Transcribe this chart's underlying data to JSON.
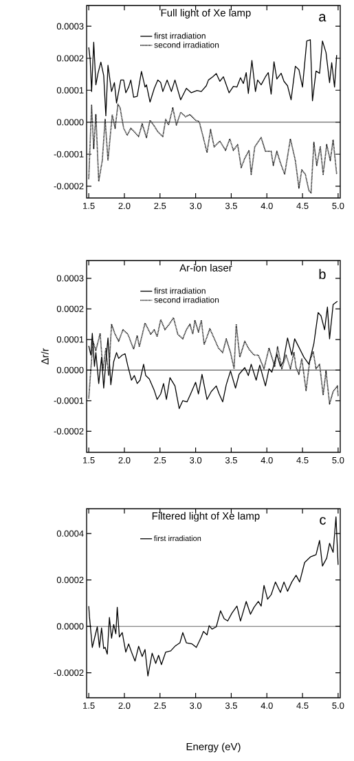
{
  "chart_data": [
    {
      "type": "line",
      "title": "Full light of Xe lamp",
      "legend": "top",
      "annotations": [
        "a"
      ],
      "xlim": [
        1.47,
        5.03
      ],
      "ylim": [
        -0.000237,
        0.000365
      ],
      "xticks": [
        {
          "value": 1.5,
          "label": "1.5"
        },
        {
          "value": 2.0,
          "label": "2.0"
        },
        {
          "value": 2.5,
          "label": "2.5"
        },
        {
          "value": 3.0,
          "label": "3.0"
        },
        {
          "value": 3.5,
          "label": "3.5"
        },
        {
          "value": 4.0,
          "label": "4.0"
        },
        {
          "value": 4.5,
          "label": "4.5"
        },
        {
          "value": 5.0,
          "label": "5.0"
        }
      ],
      "yticks": [
        {
          "value": -0.0002,
          "label": "-0.0002"
        },
        {
          "value": -0.0001,
          "label": "-0.0001"
        },
        {
          "value": 0,
          "label": "0.0000"
        },
        {
          "value": 0.0001,
          "label": "0.0001"
        },
        {
          "value": 0.0002,
          "label": "0.0002"
        },
        {
          "value": 0.0003,
          "label": "0.0003"
        }
      ],
      "ref_lines": [
        {
          "axis": "y",
          "value": 0
        }
      ],
      "series": [
        {
          "name": "first irradiation",
          "color": "#000000",
          "line_style": "solid",
          "x": [
            1.5,
            1.52,
            1.54,
            1.57,
            1.6,
            1.63,
            1.67,
            1.71,
            1.74,
            1.77,
            1.82,
            1.86,
            1.89,
            1.95,
            1.99,
            2.02,
            2.06,
            2.09,
            2.13,
            2.18,
            2.24,
            2.29,
            2.31,
            2.36,
            2.42,
            2.47,
            2.51,
            2.54,
            2.6,
            2.66,
            2.71,
            2.79,
            2.87,
            2.94,
            3.02,
            3.08,
            3.15,
            3.18,
            3.24,
            3.29,
            3.34,
            3.39,
            3.47,
            3.53,
            3.58,
            3.63,
            3.67,
            3.71,
            3.74,
            3.79,
            3.84,
            3.87,
            3.92,
            3.98,
            4.02,
            4.06,
            4.1,
            4.14,
            4.2,
            4.24,
            4.29,
            4.34,
            4.4,
            4.45,
            4.5,
            4.56,
            4.61,
            4.64,
            4.69,
            4.74,
            4.78,
            4.83,
            4.88,
            4.91,
            4.95,
            4.98
          ],
          "values": [
            0.000234,
            0.000196,
            9.6e-05,
            0.00025,
            0.000117,
            0.000153,
            0.000188,
            0.000146,
            2e-05,
            0.000178,
            9.6e-05,
            0.000124,
            6e-05,
            0.000132,
            0.000132,
            9.2e-05,
            0.00011,
            0.000132,
            7.8e-05,
            8.1e-05,
            0.000159,
            0.00011,
            0.000117,
            6.3e-05,
            0.000106,
            0.000132,
            0.000124,
            9.6e-05,
            0.000132,
            9.6e-05,
            0.000132,
            7e-05,
            0.000106,
            9.2e-05,
            9.9e-05,
            9.6e-05,
            0.000114,
            0.000132,
            0.000142,
            0.000152,
            0.000128,
            0.000142,
            9.2e-05,
            0.000112,
            0.00011,
            0.000139,
            0.000121,
            0.000155,
            9e-05,
            0.000193,
            9.6e-05,
            0.000132,
            0.000117,
            0.000142,
            0.000155,
            8.8e-05,
            0.000189,
            0.000135,
            0.000153,
            0.000128,
            0.000114,
            7e-05,
            0.000175,
            0.000164,
            0.00011,
            0.000254,
            0.000258,
            6.7e-05,
            0.00016,
            0.000153,
            0.000254,
            0.000218,
            0.000124,
            0.000186,
            0.00011,
            0.00021
          ]
        },
        {
          "name": "second irradiation",
          "color": "#000000",
          "line_style": "dotted",
          "x": [
            1.5,
            1.54,
            1.57,
            1.6,
            1.64,
            1.69,
            1.73,
            1.77,
            1.83,
            1.87,
            1.91,
            1.94,
            1.99,
            2.04,
            2.09,
            2.14,
            2.2,
            2.25,
            2.31,
            2.36,
            2.42,
            2.47,
            2.54,
            2.58,
            2.62,
            2.68,
            2.73,
            2.79,
            2.86,
            2.92,
            3.0,
            3.05,
            3.1,
            3.16,
            3.21,
            3.26,
            3.34,
            3.42,
            3.48,
            3.53,
            3.59,
            3.64,
            3.69,
            3.75,
            3.78,
            3.83,
            3.92,
            3.98,
            4.06,
            4.09,
            4.14,
            4.19,
            4.25,
            4.33,
            4.4,
            4.45,
            4.49,
            4.54,
            4.59,
            4.62,
            4.66,
            4.7,
            4.75,
            4.79,
            4.84,
            4.89,
            4.93,
            4.98
          ],
          "values": [
            -0.000178,
            5.3e-05,
            -8.4e-05,
            2.4e-05,
            -0.000185,
            -0.00012,
            9e-06,
            -0.00012,
            2.4e-05,
            -1.9e-05,
            5.6e-05,
            4.5e-05,
            -1.9e-05,
            -4.1e-05,
            -1.9e-05,
            -3e-05,
            -4.5e-05,
            -5e-06,
            -4.8e-05,
            6e-06,
            -1.2e-05,
            -3e-05,
            -4.5e-05,
            9e-06,
            -9e-06,
            4.5e-05,
            -9e-06,
            3.1e-05,
            1.7e-05,
            2.4e-05,
            6e-06,
            2e-06,
            -4.1e-05,
            -9.5e-05,
            -2.3e-05,
            -7.7e-05,
            -5.9e-05,
            -8.8e-05,
            -5.2e-05,
            -8.8e-05,
            -7e-05,
            -0.000142,
            -0.000113,
            -8.8e-05,
            -0.000163,
            -7.7e-05,
            -4.8e-05,
            -9.1e-05,
            -9.1e-05,
            -0.000135,
            -9.1e-05,
            -0.000127,
            -0.000163,
            -5.2e-05,
            -0.00012,
            -0.000206,
            -0.000149,
            -0.000163,
            -0.000214,
            -0.000221,
            -6.3e-05,
            -0.000135,
            -7.7e-05,
            -0.000163,
            -7e-05,
            -0.00012,
            -5.5e-05,
            -0.000163
          ]
        }
      ]
    },
    {
      "type": "line",
      "title": "Ar-ion laser",
      "ylabel": "Δr/r",
      "legend": "top",
      "annotations": [
        "b"
      ],
      "xlim": [
        1.47,
        5.03
      ],
      "ylim": [
        -0.000269,
        0.000358
      ],
      "xticks": [
        {
          "value": 1.5,
          "label": "1.5"
        },
        {
          "value": 2.0,
          "label": "2.0"
        },
        {
          "value": 2.5,
          "label": "2.5"
        },
        {
          "value": 3.0,
          "label": "3.0"
        },
        {
          "value": 3.5,
          "label": "3.5"
        },
        {
          "value": 4.0,
          "label": "4.0"
        },
        {
          "value": 4.5,
          "label": "4.5"
        },
        {
          "value": 5.0,
          "label": "5.0"
        }
      ],
      "yticks": [
        {
          "value": -0.0002,
          "label": "-0.0002"
        },
        {
          "value": -0.0001,
          "label": "-0.0001"
        },
        {
          "value": 0,
          "label": "0.0000"
        },
        {
          "value": 0.0001,
          "label": "0.0001"
        },
        {
          "value": 0.0002,
          "label": "0.0002"
        },
        {
          "value": 0.0003,
          "label": "0.0003"
        }
      ],
      "ref_lines": [
        {
          "axis": "y",
          "value": 0
        }
      ],
      "series": [
        {
          "name": "first irradiation",
          "color": "#000000",
          "line_style": "solid",
          "x": [
            1.5,
            1.53,
            1.55,
            1.58,
            1.6,
            1.64,
            1.68,
            1.71,
            1.74,
            1.77,
            1.81,
            1.85,
            1.89,
            1.92,
            1.97,
            2.01,
            2.05,
            2.1,
            2.14,
            2.18,
            2.22,
            2.27,
            2.3,
            2.35,
            2.42,
            2.46,
            2.51,
            2.55,
            2.59,
            2.64,
            2.71,
            2.77,
            2.82,
            2.88,
            2.93,
            3.0,
            3.04,
            3.09,
            3.16,
            3.22,
            3.29,
            3.33,
            3.38,
            3.43,
            3.49,
            3.56,
            3.61,
            3.69,
            3.74,
            3.78,
            3.85,
            3.9,
            3.98,
            4.03,
            4.07,
            4.14,
            4.19,
            4.23,
            4.29,
            4.35,
            4.39,
            4.44,
            4.52,
            4.59,
            4.66,
            4.72,
            4.76,
            4.81,
            4.85,
            4.88,
            4.93,
            4.99
          ],
          "values": [
            7.9e-05,
            4.9e-05,
            0.00012,
            1.2e-05,
            5.7e-05,
            -4.4e-05,
            4.2e-05,
            -5.9e-05,
            2.7e-05,
            0.000105,
            -4.8e-05,
            2.7e-05,
            5.7e-05,
            3.8e-05,
            4.9e-05,
            5.3e-05,
            1.2e-05,
            -3.3e-05,
            -1.8e-05,
            -4.4e-05,
            -3.3e-05,
            1.9e-05,
            -1.8e-05,
            -2.9e-05,
            -6.7e-05,
            -9.6e-05,
            -7.8e-05,
            -4.4e-05,
            -9.6e-05,
            -2.5e-05,
            -5.2e-05,
            -0.000126,
            -0.0001,
            -0.000104,
            -7.8e-05,
            -4e-05,
            -7.8e-05,
            -1.4e-05,
            -9.6e-05,
            -7e-05,
            -5.2e-05,
            -7.8e-05,
            -0.000104,
            -4.8e-05,
            -3e-06,
            -5.9e-05,
            -1.4e-05,
            8e-06,
            -1.8e-05,
            1.9e-05,
            -3.3e-05,
            1.6e-05,
            -5.2e-05,
            4e-06,
            -7e-06,
            5.3e-05,
            1.2e-05,
            2.7e-05,
            0.000105,
            4.9e-05,
            0.000102,
            7.9e-05,
            4.2e-05,
            1.9e-05,
            8.7e-05,
            0.000188,
            0.000177,
            0.000132,
            0.000206,
            0.000102,
            0.000214,
            0.000225
          ]
        },
        {
          "name": "second irradiation",
          "color": "#000000",
          "line_style": "dotted",
          "x": [
            1.5,
            1.53,
            1.56,
            1.6,
            1.66,
            1.7,
            1.74,
            1.78,
            1.82,
            1.87,
            1.92,
            1.98,
            2.05,
            2.13,
            2.18,
            2.21,
            2.29,
            2.37,
            2.42,
            2.46,
            2.51,
            2.57,
            2.63,
            2.69,
            2.75,
            2.82,
            2.87,
            2.92,
            2.96,
            2.99,
            3.04,
            3.08,
            3.12,
            3.2,
            3.25,
            3.32,
            3.38,
            3.43,
            3.49,
            3.54,
            3.57,
            3.62,
            3.69,
            3.75,
            3.82,
            3.88,
            3.96,
            4.03,
            4.11,
            4.15,
            4.21,
            4.27,
            4.33,
            4.38,
            4.41,
            4.45,
            4.49,
            4.55,
            4.6,
            4.65,
            4.69,
            4.74,
            4.79,
            4.83,
            4.88,
            4.93,
            4.99,
            5.0
          ],
          "values": [
            -9.3e-05,
            4e-06,
            9.4e-05,
            6.4e-05,
            0.00012,
            -3e-06,
            7.2e-05,
            -1.8e-05,
            0.00015,
            0.000117,
            9.4e-05,
            0.000132,
            0.000117,
            6.8e-05,
            0.000113,
            7.6e-05,
            0.000154,
            0.000117,
            0.000132,
            0.000109,
            0.000165,
            0.000132,
            0.00015,
            0.000171,
            0.000117,
            0.000102,
            0.000132,
            0.00015,
            0.000117,
            0.000163,
            0.000124,
            0.000163,
            8.3e-05,
            0.000135,
            0.000109,
            7.2e-05,
            5.7e-05,
            0.000102,
            5.7e-05,
            4e-06,
            0.00015,
            4.2e-05,
            9.4e-05,
            6.8e-05,
            4.9e-05,
            4.9e-05,
            4e-06,
            7.2e-05,
            1.2e-05,
            7.6e-05,
            4e-06,
            4.9e-05,
            4e-06,
            5.7e-05,
            8e-06,
            -1.4e-05,
            3.8e-05,
            -6.7e-05,
            2.7e-05,
            6.1e-05,
            4e-06,
            1.9e-05,
            -8.2e-05,
            -3e-06,
            -0.000111,
            -7e-05,
            -5.2e-05,
            -8.5e-05
          ]
        }
      ]
    },
    {
      "type": "line",
      "title": "Filtered light of Xe lamp",
      "xlabel": "Energy (eV)",
      "legend": "top",
      "annotations": [
        "c"
      ],
      "xlim": [
        1.47,
        5.03
      ],
      "ylim": [
        -0.000308,
        0.000507
      ],
      "xticks": [
        {
          "value": 1.5,
          "label": "1.5"
        },
        {
          "value": 2.0,
          "label": "2.0"
        },
        {
          "value": 2.5,
          "label": "2.5"
        },
        {
          "value": 3.0,
          "label": "3.0"
        },
        {
          "value": 3.5,
          "label": "3.5"
        },
        {
          "value": 4.0,
          "label": "4.0"
        },
        {
          "value": 4.5,
          "label": "4.5"
        },
        {
          "value": 5.0,
          "label": "5.0"
        }
      ],
      "yticks": [
        {
          "value": -0.0002,
          "label": "-0.0002"
        },
        {
          "value": 0,
          "label": "0.0000"
        },
        {
          "value": 0.0002,
          "label": "0.0002"
        },
        {
          "value": 0.0004,
          "label": "0.0004"
        }
      ],
      "ref_lines": [
        {
          "axis": "y",
          "value": 0
        }
      ],
      "series": [
        {
          "name": "first irradiation",
          "color": "#000000",
          "line_style": "solid",
          "x": [
            1.5,
            1.51,
            1.55,
            1.62,
            1.65,
            1.68,
            1.71,
            1.73,
            1.76,
            1.79,
            1.82,
            1.85,
            1.88,
            1.9,
            1.93,
            1.97,
            2.02,
            2.06,
            2.1,
            2.15,
            2.2,
            2.25,
            2.29,
            2.33,
            2.39,
            2.44,
            2.48,
            2.52,
            2.58,
            2.65,
            2.71,
            2.78,
            2.82,
            2.87,
            2.95,
            3.01,
            3.08,
            3.11,
            3.16,
            3.19,
            3.23,
            3.29,
            3.35,
            3.4,
            3.45,
            3.51,
            3.58,
            3.63,
            3.71,
            3.77,
            3.82,
            3.88,
            3.92,
            3.96,
            4.01,
            4.06,
            4.12,
            4.19,
            4.24,
            4.29,
            4.35,
            4.41,
            4.46,
            4.53,
            4.61,
            4.69,
            4.74,
            4.78,
            4.84,
            4.88,
            4.93,
            4.97,
            5.0
          ],
          "values": [
            8.7e-05,
            4.2e-05,
            -9.1e-05,
            -2e-06,
            -9.1e-05,
            -7e-06,
            -9.6e-05,
            -9.1e-05,
            -0.00012,
            3.8e-05,
            -5.1e-05,
            8e-06,
            -3.2e-05,
            8.2e-05,
            -4.6e-05,
            -2.7e-05,
            -0.000111,
            -7.6e-05,
            -0.000111,
            -0.00015,
            -8.6e-05,
            -0.00013,
            -0.0001,
            -0.000214,
            -0.000116,
            -0.00016,
            -0.000125,
            -0.000165,
            -0.000111,
            -0.000106,
            -8.6e-05,
            -7.1e-05,
            -2.7e-05,
            -7.1e-05,
            -7.6e-05,
            -9.1e-05,
            -4.6e-05,
            -2.2e-05,
            -3.7e-05,
            3e-06,
            -1.2e-05,
            -2e-06,
            6.7e-05,
            3.3e-05,
            2.3e-05,
            5.7e-05,
            8.7e-05,
            2.3e-05,
            0.000107,
            5.2e-05,
            8.2e-05,
            0.000107,
            8.7e-05,
            0.000176,
            0.000117,
            0.000136,
            0.000191,
            0.000146,
            0.000191,
            0.000151,
            0.000191,
            0.00022,
            0.000191,
            0.000275,
            0.000299,
            0.000309,
            0.00037,
            0.00026,
            0.000294,
            0.000358,
            0.000319,
            0.000472,
            0.000265
          ]
        }
      ]
    }
  ]
}
